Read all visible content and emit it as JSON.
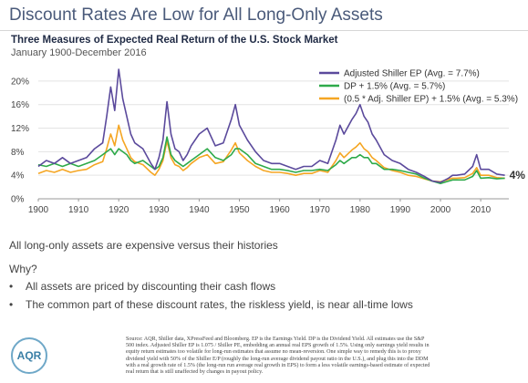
{
  "slide": {
    "title": "Discount Rates Are Low for All Long-Only Assets"
  },
  "chart_data": {
    "type": "line",
    "title": "Three Measures of Expected Real Return of the U.S. Stock Market",
    "subtitle": "January 1900-December 2016",
    "xlim": [
      1900,
      2017
    ],
    "ylim": [
      0,
      22
    ],
    "x_ticks": [
      1900,
      1910,
      1920,
      1930,
      1940,
      1950,
      1960,
      1970,
      1980,
      1990,
      2000,
      2010
    ],
    "y_ticks": [
      0,
      4,
      8,
      12,
      16,
      20
    ],
    "y_tick_labels": [
      "0%",
      "4%",
      "8%",
      "12%",
      "16%",
      "20%"
    ],
    "grid": "horizontal",
    "legend_placement": "top-right",
    "end_annotation": "4%",
    "x": [
      1900,
      1902,
      1904,
      1906,
      1908,
      1910,
      1912,
      1914,
      1916,
      1917,
      1918,
      1919,
      1920,
      1921,
      1922,
      1923,
      1924,
      1926,
      1928,
      1929,
      1930,
      1931,
      1932,
      1933,
      1934,
      1935,
      1936,
      1937,
      1938,
      1940,
      1942,
      1944,
      1946,
      1948,
      1949,
      1950,
      1952,
      1954,
      1956,
      1958,
      1960,
      1962,
      1964,
      1966,
      1968,
      1970,
      1972,
      1974,
      1975,
      1976,
      1978,
      1979,
      1980,
      1981,
      1982,
      1983,
      1984,
      1986,
      1988,
      1990,
      1992,
      1994,
      1996,
      1998,
      2000,
      2002,
      2003,
      2004,
      2006,
      2008,
      2009,
      2010,
      2012,
      2014,
      2016
    ],
    "series": [
      {
        "name": "Adjusted Shiller EP (Avg. = 7.7%)",
        "color": "#5b4a9c",
        "values": [
          5.5,
          6.5,
          6.0,
          7.0,
          6.0,
          6.5,
          7.0,
          8.5,
          9.5,
          14.0,
          19.0,
          15.0,
          22.0,
          17.0,
          14.0,
          11.0,
          9.5,
          8.5,
          6.0,
          5.0,
          7.0,
          10.0,
          16.5,
          11.0,
          8.5,
          8.0,
          6.5,
          7.5,
          9.0,
          11.0,
          12.0,
          9.0,
          9.5,
          13.5,
          16.0,
          12.5,
          10.0,
          8.0,
          6.5,
          6.0,
          6.0,
          5.5,
          5.0,
          5.5,
          5.5,
          6.5,
          6.0,
          10.0,
          12.5,
          11.0,
          13.5,
          14.5,
          16.0,
          14.0,
          13.0,
          11.0,
          10.0,
          7.5,
          6.5,
          6.0,
          5.0,
          4.5,
          3.8,
          3.0,
          2.8,
          3.5,
          4.0,
          4.0,
          4.2,
          5.5,
          7.5,
          5.0,
          5.0,
          4.2,
          4.0
        ]
      },
      {
        "name": "DP + 1.5% (Avg. = 5.7%)",
        "color": "#2eaa4a",
        "values": [
          5.8,
          5.5,
          6.0,
          5.5,
          6.0,
          5.5,
          6.0,
          6.5,
          7.5,
          8.0,
          8.5,
          7.5,
          8.5,
          8.0,
          7.5,
          6.5,
          6.0,
          6.5,
          5.5,
          5.0,
          5.5,
          7.0,
          10.5,
          7.5,
          6.5,
          6.0,
          5.5,
          6.0,
          6.5,
          7.5,
          8.5,
          7.0,
          6.5,
          7.5,
          8.5,
          8.5,
          7.5,
          6.0,
          5.5,
          5.0,
          5.0,
          4.8,
          4.5,
          4.8,
          4.8,
          5.0,
          4.8,
          5.8,
          6.5,
          6.0,
          7.0,
          7.0,
          7.5,
          7.0,
          7.0,
          6.0,
          6.0,
          5.0,
          5.0,
          4.8,
          4.5,
          4.2,
          3.5,
          3.0,
          2.6,
          3.0,
          3.2,
          3.2,
          3.2,
          3.8,
          4.8,
          3.5,
          3.6,
          3.4,
          3.5
        ]
      },
      {
        "name": "(0.5 * Adj. Shiller EP) + 1.5% (Avg. = 5.3%)",
        "color": "#f5a623",
        "values": [
          4.3,
          4.8,
          4.5,
          5.0,
          4.5,
          4.8,
          5.0,
          5.8,
          6.3,
          8.5,
          11.0,
          9.0,
          12.5,
          10.0,
          8.5,
          7.0,
          6.3,
          5.8,
          4.5,
          4.0,
          5.0,
          6.5,
          9.8,
          7.0,
          5.8,
          5.5,
          4.8,
          5.3,
          6.0,
          7.0,
          7.5,
          6.0,
          6.3,
          8.3,
          9.5,
          7.8,
          6.5,
          5.5,
          4.8,
          4.5,
          4.5,
          4.3,
          4.0,
          4.3,
          4.3,
          4.8,
          4.5,
          6.5,
          7.8,
          7.0,
          8.3,
          8.8,
          9.5,
          8.5,
          8.0,
          7.0,
          6.5,
          5.3,
          4.8,
          4.5,
          4.0,
          3.8,
          3.4,
          3.0,
          2.9,
          3.3,
          3.5,
          3.5,
          3.6,
          4.3,
          5.3,
          4.0,
          4.0,
          3.6,
          3.5
        ]
      }
    ]
  },
  "bullets": {
    "lead": "All long-only assets are expensive versus their histories",
    "why": "Why?",
    "items": [
      "All assets are priced by discounting their cash flows",
      "The common part of these discount rates, the riskless yield, is near all-time lows"
    ]
  },
  "logo": {
    "text": "AQR",
    "color": "#3a7fa6"
  },
  "source_lines": [
    "Source: AQR, Shiller data, XPressFeed and Bloomberg. EP is the Earnings Yield. DP is the Dividend Yield. All estimates use the S&P",
    "500 index. Adjusted Shiller EP is 1.075 / Shiller PE, embedding an annual real EPS growth of 1.5%. Using only earnings yield results in",
    "equity return estimates too volatile for long-run estimates that assume no mean-reversion. One simple way to remedy this is to proxy",
    "dividend yield with 50% of the Shiller E/P (roughly the long-run average dividend payout ratio in the U.S.), and plug this into the DDM",
    "with a real growth rate of 1.5% (the long-run run average real growth in EPS) to form a less volatile earnings-based estimate of expected",
    "real return that is still unaffected by changes in payout policy."
  ]
}
